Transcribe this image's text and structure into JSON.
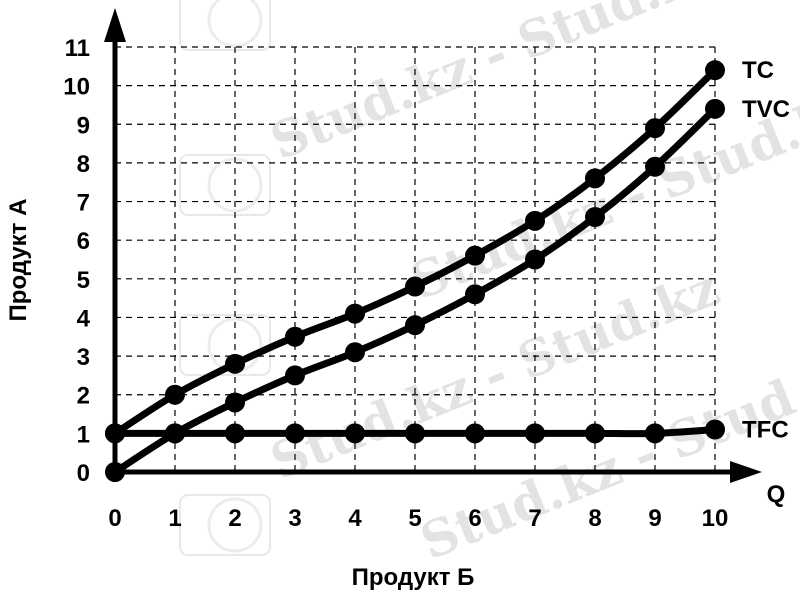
{
  "chart_data": {
    "type": "line",
    "x_axis_label": "Q",
    "x_bottom_label": "Продукт Б",
    "y_axis_label": "Продукт А",
    "x_ticks": [
      0,
      1,
      2,
      3,
      4,
      5,
      6,
      7,
      8,
      9,
      10
    ],
    "y_ticks": [
      0,
      1,
      2,
      3,
      4,
      5,
      6,
      7,
      8,
      9,
      10,
      11
    ],
    "xlim": [
      0,
      10
    ],
    "ylim": [
      0,
      11
    ],
    "grid": true,
    "grid_style": "dashed",
    "line_color": "#000000",
    "series": [
      {
        "name": "TC",
        "x": [
          0,
          1,
          2,
          3,
          4,
          5,
          6,
          7,
          8,
          9,
          10
        ],
        "y": [
          1,
          2,
          2.8,
          3.5,
          4.1,
          4.8,
          5.6,
          6.5,
          7.6,
          8.9,
          10.4
        ]
      },
      {
        "name": "TVC",
        "x": [
          0,
          1,
          2,
          3,
          4,
          5,
          6,
          7,
          8,
          9,
          10
        ],
        "y": [
          0,
          1,
          1.8,
          2.5,
          3.1,
          3.8,
          4.6,
          5.5,
          6.6,
          7.9,
          9.4
        ]
      },
      {
        "name": "TFC",
        "x": [
          0,
          1,
          2,
          3,
          4,
          5,
          6,
          7,
          8,
          9,
          10
        ],
        "y": [
          1,
          1,
          1,
          1,
          1,
          1,
          1,
          1,
          1,
          1,
          1.1
        ]
      }
    ]
  },
  "watermark": {
    "text": "Stud.kz - Stud.kz",
    "color": "#e3e3e3"
  }
}
